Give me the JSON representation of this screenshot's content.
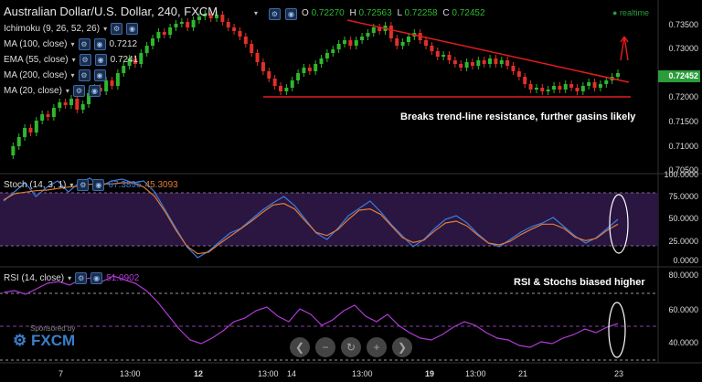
{
  "header": {
    "symbol_title": "Australian Dollar/U.S. Dollar, 240, FXCM",
    "ohlc": {
      "o_label": "O",
      "o": "0.72270",
      "h_label": "H",
      "h": "0.72563",
      "l_label": "L",
      "l": "0.72258",
      "c_label": "C",
      "c": "0.72452"
    },
    "realtime": "realtime"
  },
  "indicators": [
    {
      "label": "Ichimoku (9, 26, 52, 26)",
      "value": ""
    },
    {
      "label": "MA (100, close)",
      "value": "0.7212"
    },
    {
      "label": "EMA (55, close)",
      "value": "0.7241"
    },
    {
      "label": "MA (200, close)",
      "value": ""
    },
    {
      "label": "MA (20, close)",
      "value": ""
    }
  ],
  "price_axis": [
    "0.73500",
    "0.73000",
    "0.72452",
    "0.72000",
    "0.71500",
    "0.71000",
    "0.70500"
  ],
  "annotation_main": "Breaks trend-line resistance, further gasins likely",
  "stoch": {
    "label": "Stoch (14, 3, 1)",
    "k": "67.3896",
    "d": "45.3093",
    "axis": [
      "100.0000",
      "75.0000",
      "50.0000",
      "25.0000",
      "0.0000"
    ]
  },
  "rsi": {
    "label": "RSI (14, close)",
    "value": "51.0902",
    "axis": [
      "80.0000",
      "60.0000",
      "40.0000"
    ],
    "annotation": "RSI & Stochs biased higher"
  },
  "time_axis": [
    "7",
    "13:00",
    "12",
    "13:00",
    "14",
    "13:00",
    "19",
    "13:00",
    "21",
    "23"
  ],
  "sponsor": {
    "line1": "Sponsored by",
    "brand": "FXCM"
  },
  "colors": {
    "up": "#2eb82e",
    "down": "#e0302a",
    "trendline": "#e51c1c",
    "stoch_k": "#3b7de0",
    "stoch_d": "#e07b39",
    "rsi": "#b13bd6",
    "accent": "#2a9d3a"
  }
}
